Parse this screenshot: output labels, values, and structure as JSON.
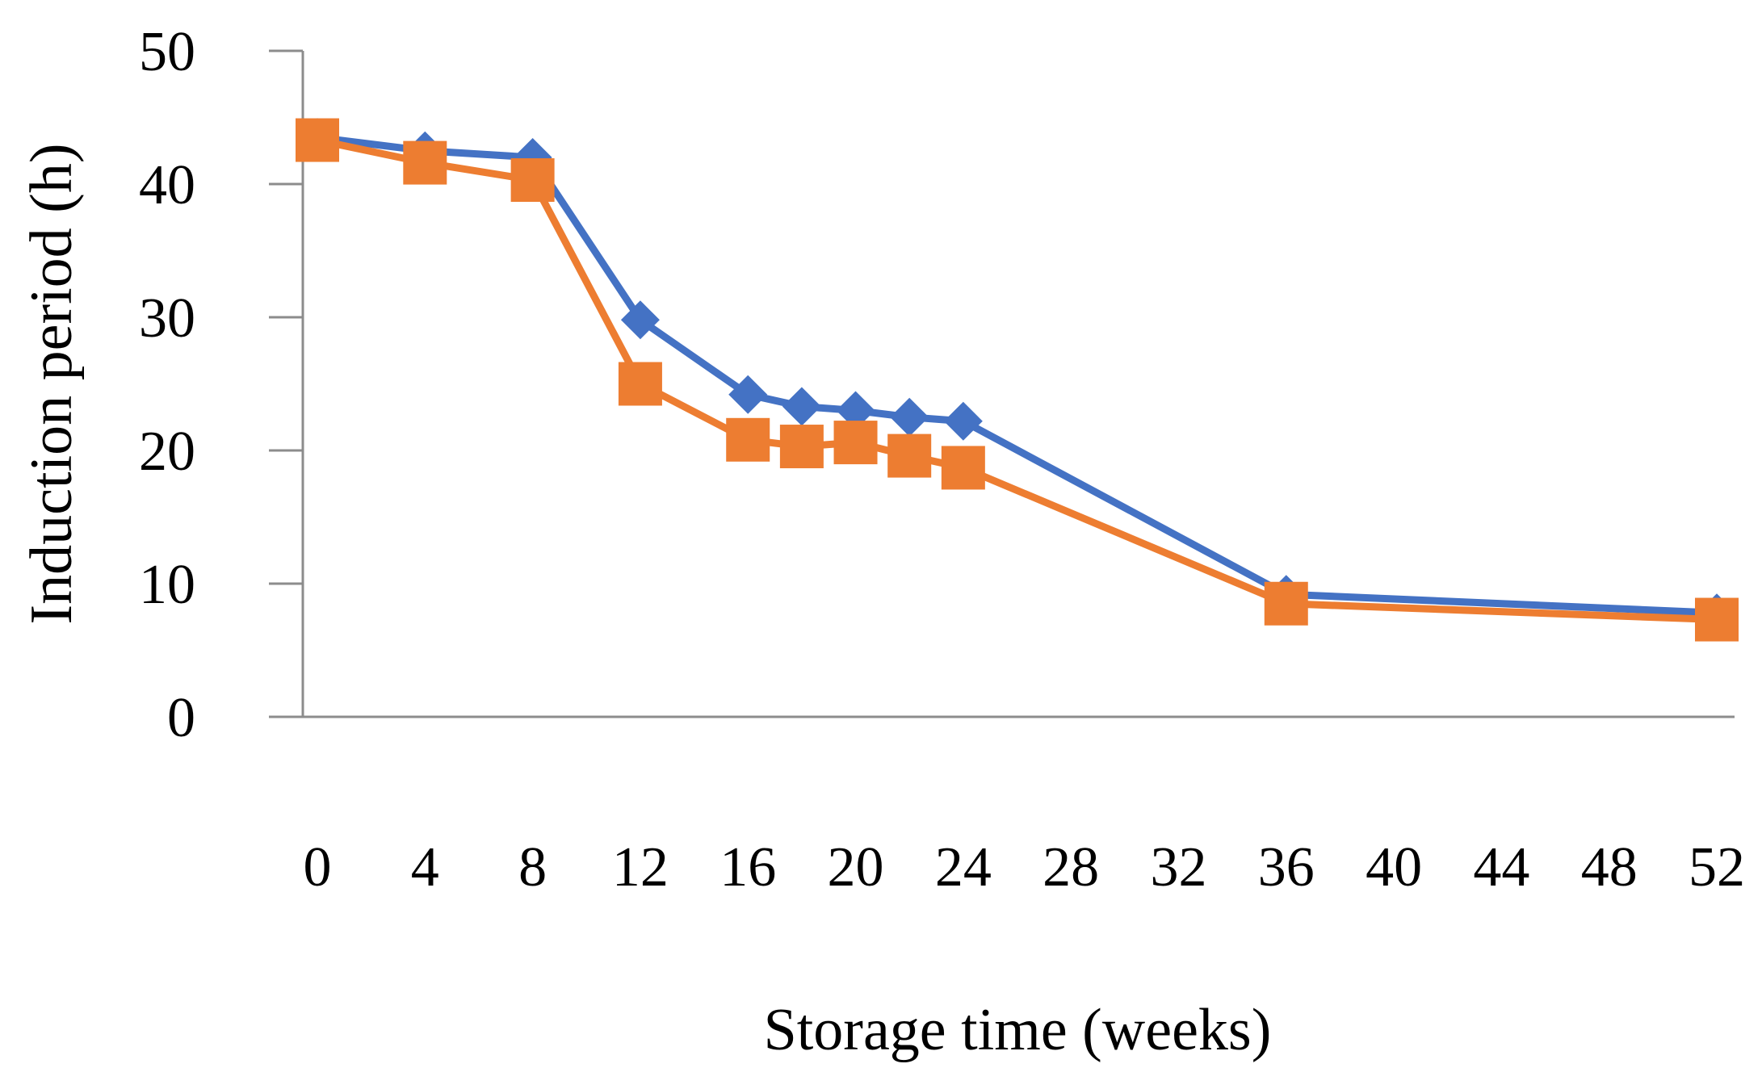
{
  "chart_data": {
    "type": "line",
    "title": "",
    "xlabel": "Storage time (weeks)",
    "ylabel": "Induction period (h)",
    "ylim": [
      0,
      50
    ],
    "y_ticks": [
      "0",
      "10",
      "20",
      "30",
      "40",
      "50"
    ],
    "x_ticks": [
      "0",
      "4",
      "8",
      "12",
      "16",
      "20",
      "24",
      "28",
      "32",
      "36",
      "40",
      "44",
      "48",
      "52"
    ],
    "grid": false,
    "legend": "none",
    "series": [
      {
        "marker": "diamond",
        "color": "#4472C4",
        "x": [
          0,
          4,
          8,
          12,
          16,
          18,
          20,
          22,
          24,
          36,
          52
        ],
        "values": [
          43.5,
          42.5,
          42.0,
          29.8,
          24.2,
          23.3,
          23.0,
          22.5,
          22.2,
          9.2,
          7.8
        ]
      },
      {
        "marker": "square",
        "color": "#ED7D31",
        "x": [
          0,
          4,
          8,
          12,
          16,
          18,
          20,
          22,
          24,
          36,
          52
        ],
        "values": [
          43.3,
          41.6,
          40.3,
          25.0,
          20.8,
          20.3,
          20.6,
          19.6,
          18.7,
          8.5,
          7.3
        ]
      }
    ]
  }
}
